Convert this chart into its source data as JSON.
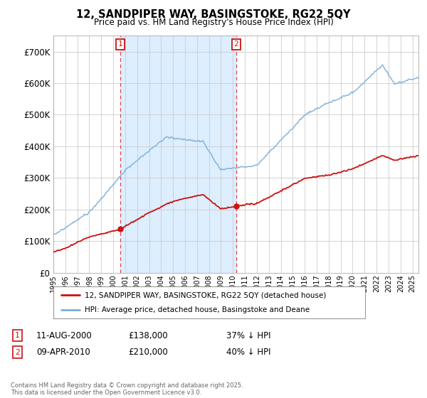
{
  "title": "12, SANDPIPER WAY, BASINGSTOKE, RG22 5QY",
  "subtitle": "Price paid vs. HM Land Registry's House Price Index (HPI)",
  "hpi_label": "HPI: Average price, detached house, Basingstoke and Deane",
  "price_label": "12, SANDPIPER WAY, BASINGSTOKE, RG22 5QY (detached house)",
  "hpi_color": "#7aaed6",
  "price_color": "#cc1111",
  "annotation1_year": 2000.6,
  "annotation1_value": 138000,
  "annotation1_date": "11-AUG-2000",
  "annotation1_price": "£138,000",
  "annotation1_hpi": "37% ↓ HPI",
  "annotation2_year": 2010.27,
  "annotation2_value": 210000,
  "annotation2_date": "09-APR-2010",
  "annotation2_price": "£210,000",
  "annotation2_hpi": "40% ↓ HPI",
  "ylim": [
    0,
    750000
  ],
  "xlim_start": 1995,
  "xlim_end": 2025.5,
  "yticks": [
    0,
    100000,
    200000,
    300000,
    400000,
    500000,
    600000,
    700000
  ],
  "ytick_labels": [
    "£0",
    "£100K",
    "£200K",
    "£300K",
    "£400K",
    "£500K",
    "£600K",
    "£700K"
  ],
  "footer": "Contains HM Land Registry data © Crown copyright and database right 2025.\nThis data is licensed under the Open Government Licence v3.0.",
  "plot_bg": "#ffffff",
  "grid_color": "#cccccc",
  "span_color": "#ddeeff"
}
